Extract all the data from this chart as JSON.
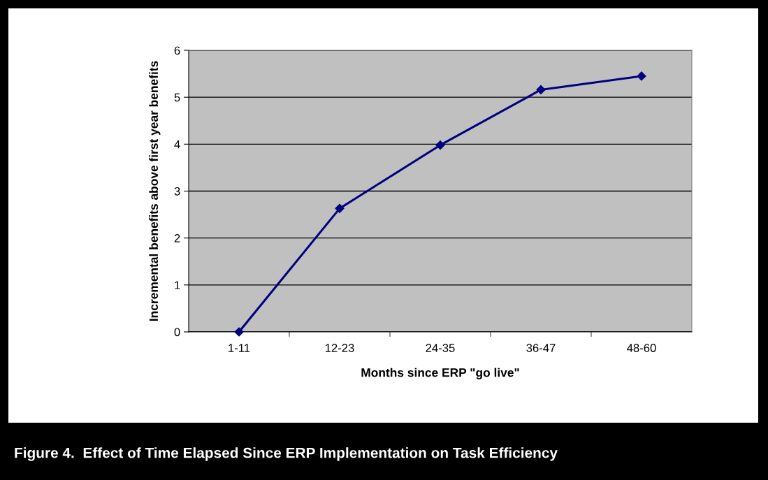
{
  "chart_data": {
    "type": "line",
    "title": "Figure 4.  Effect of Time Elapsed Since ERP Implementation on Task Efficiency",
    "xlabel": "Months since ERP \"go live\"",
    "ylabel": "Incremental benefits above first year benefits",
    "categories": [
      "1-11",
      "12-23",
      "24-35",
      "36-47",
      "48-60"
    ],
    "series": [
      {
        "color": "#000080",
        "values": [
          0,
          2.63,
          3.98,
          5.16,
          5.45
        ]
      }
    ],
    "ylim": [
      0,
      6
    ],
    "yticks": [
      0,
      1,
      2,
      3,
      4,
      5,
      6
    ],
    "grid": "y",
    "legend": false,
    "marker": "diamond",
    "line_style": "solid"
  }
}
